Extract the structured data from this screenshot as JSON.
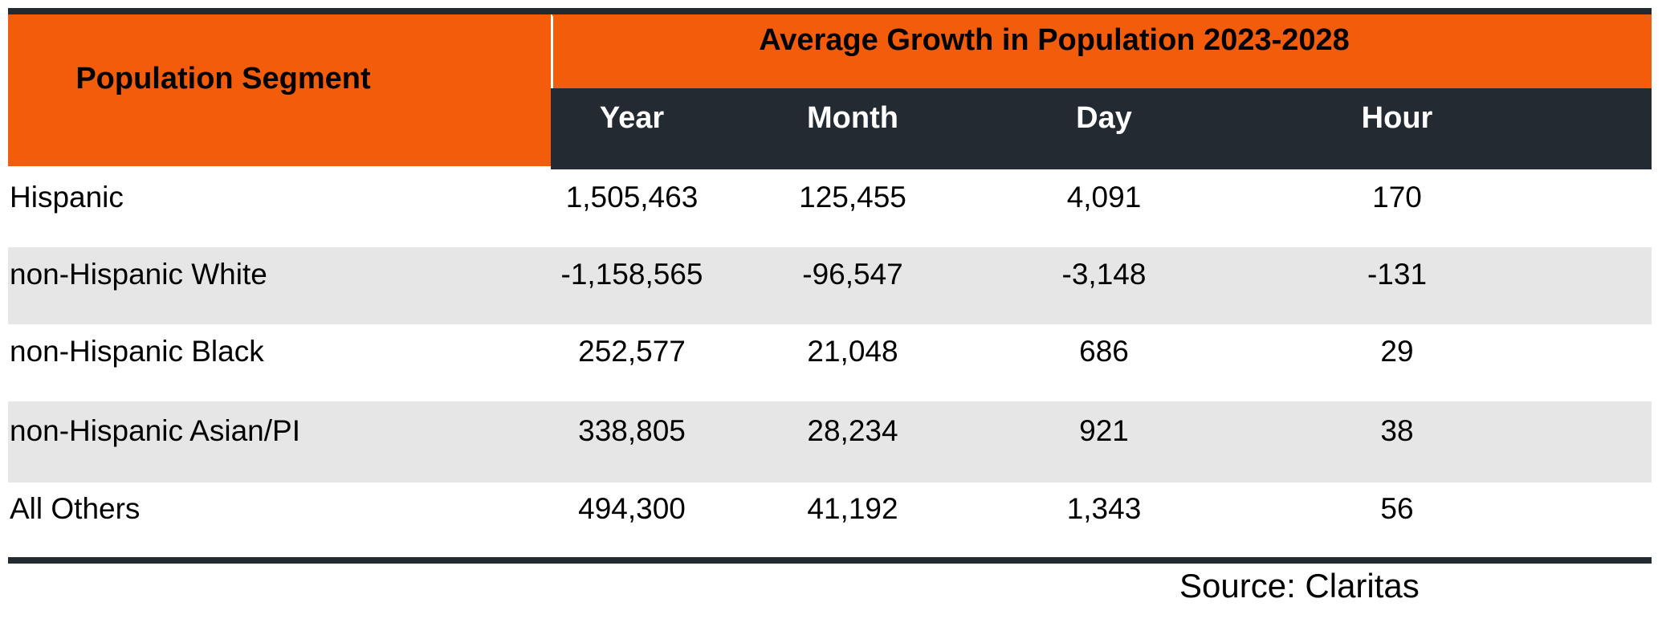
{
  "header": {
    "segment_label": "Population Segment",
    "group_title": "Average Growth in Population 2023-2028",
    "columns": [
      "Year",
      "Month",
      "Day",
      "Hour"
    ]
  },
  "table": {
    "rows": [
      [
        "Hispanic",
        "1,505,463",
        "125,455",
        "4,091",
        "170"
      ],
      [
        "non-Hispanic White",
        "-1,158,565",
        "-96,547",
        "-3,148",
        "-131"
      ],
      [
        "non-Hispanic Black",
        "252,577",
        "21,048",
        "686",
        "29"
      ],
      [
        "non-Hispanic Asian/PI",
        "338,805",
        "28,234",
        "921",
        "38"
      ],
      [
        "All Others",
        "494,300",
        "41,192",
        "1,343",
        "56"
      ]
    ]
  },
  "footer": {
    "source": "Source: Claritas"
  }
}
